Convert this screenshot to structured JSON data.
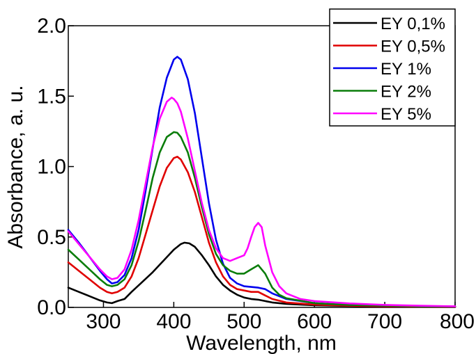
{
  "chart_data": {
    "type": "line",
    "title": "",
    "xlabel": "Wavelength, nm",
    "ylabel": "Absorbance, a. u.",
    "xlim": [
      250,
      800
    ],
    "ylim": [
      0.0,
      2.0
    ],
    "x_ticks": [
      300,
      400,
      500,
      600,
      700,
      800
    ],
    "y_ticks": [
      0.0,
      0.5,
      1.0,
      1.5,
      2.0
    ],
    "x_tick_labels": [
      "300",
      "400",
      "500",
      "600",
      "700",
      "800"
    ],
    "y_tick_labels": [
      "0.0",
      "0.5",
      "1.0",
      "1.5",
      "2.0"
    ],
    "grid": false,
    "legend_position": "top-right",
    "series": [
      {
        "name": "EY 0,1%",
        "color": "#000000",
        "points": [
          [
            250,
            0.14
          ],
          [
            265,
            0.11
          ],
          [
            280,
            0.08
          ],
          [
            295,
            0.05
          ],
          [
            305,
            0.035
          ],
          [
            312,
            0.03
          ],
          [
            320,
            0.045
          ],
          [
            330,
            0.06
          ],
          [
            340,
            0.11
          ],
          [
            355,
            0.18
          ],
          [
            370,
            0.25
          ],
          [
            385,
            0.33
          ],
          [
            400,
            0.41
          ],
          [
            410,
            0.45
          ],
          [
            415,
            0.46
          ],
          [
            422,
            0.455
          ],
          [
            430,
            0.43
          ],
          [
            440,
            0.37
          ],
          [
            450,
            0.3
          ],
          [
            460,
            0.22
          ],
          [
            470,
            0.16
          ],
          [
            480,
            0.12
          ],
          [
            490,
            0.09
          ],
          [
            500,
            0.07
          ],
          [
            510,
            0.06
          ],
          [
            520,
            0.055
          ],
          [
            530,
            0.045
          ],
          [
            540,
            0.035
          ],
          [
            560,
            0.025
          ],
          [
            600,
            0.015
          ],
          [
            650,
            0.01
          ],
          [
            700,
            0.006
          ],
          [
            750,
            0.004
          ],
          [
            800,
            0.003
          ]
        ]
      },
      {
        "name": "EY 0,5%",
        "color": "#e00000",
        "points": [
          [
            250,
            0.32
          ],
          [
            265,
            0.26
          ],
          [
            280,
            0.2
          ],
          [
            295,
            0.14
          ],
          [
            305,
            0.11
          ],
          [
            312,
            0.1
          ],
          [
            320,
            0.11
          ],
          [
            330,
            0.14
          ],
          [
            340,
            0.22
          ],
          [
            350,
            0.35
          ],
          [
            360,
            0.52
          ],
          [
            370,
            0.69
          ],
          [
            380,
            0.86
          ],
          [
            390,
            0.99
          ],
          [
            400,
            1.06
          ],
          [
            405,
            1.07
          ],
          [
            410,
            1.05
          ],
          [
            420,
            0.96
          ],
          [
            430,
            0.82
          ],
          [
            440,
            0.64
          ],
          [
            450,
            0.46
          ],
          [
            460,
            0.32
          ],
          [
            470,
            0.22
          ],
          [
            480,
            0.16
          ],
          [
            490,
            0.13
          ],
          [
            500,
            0.12
          ],
          [
            510,
            0.11
          ],
          [
            520,
            0.11
          ],
          [
            530,
            0.085
          ],
          [
            540,
            0.06
          ],
          [
            560,
            0.035
          ],
          [
            600,
            0.02
          ],
          [
            650,
            0.012
          ],
          [
            700,
            0.008
          ],
          [
            750,
            0.005
          ],
          [
            800,
            0.004
          ]
        ]
      },
      {
        "name": "EY 1%",
        "color": "#0000ee",
        "points": [
          [
            250,
            0.55
          ],
          [
            265,
            0.46
          ],
          [
            280,
            0.36
          ],
          [
            295,
            0.26
          ],
          [
            305,
            0.2
          ],
          [
            312,
            0.17
          ],
          [
            320,
            0.18
          ],
          [
            330,
            0.23
          ],
          [
            340,
            0.35
          ],
          [
            350,
            0.55
          ],
          [
            360,
            0.83
          ],
          [
            370,
            1.13
          ],
          [
            380,
            1.42
          ],
          [
            390,
            1.63
          ],
          [
            400,
            1.76
          ],
          [
            405,
            1.78
          ],
          [
            410,
            1.76
          ],
          [
            420,
            1.62
          ],
          [
            430,
            1.38
          ],
          [
            440,
            1.06
          ],
          [
            450,
            0.74
          ],
          [
            460,
            0.48
          ],
          [
            470,
            0.31
          ],
          [
            480,
            0.21
          ],
          [
            490,
            0.17
          ],
          [
            500,
            0.15
          ],
          [
            510,
            0.145
          ],
          [
            520,
            0.14
          ],
          [
            530,
            0.13
          ],
          [
            540,
            0.1
          ],
          [
            560,
            0.06
          ],
          [
            600,
            0.03
          ],
          [
            650,
            0.018
          ],
          [
            700,
            0.012
          ],
          [
            750,
            0.008
          ],
          [
            800,
            0.006
          ]
        ]
      },
      {
        "name": "EY 2%",
        "color": "#0a7d0a",
        "points": [
          [
            250,
            0.41
          ],
          [
            265,
            0.34
          ],
          [
            280,
            0.27
          ],
          [
            295,
            0.2
          ],
          [
            305,
            0.16
          ],
          [
            312,
            0.15
          ],
          [
            320,
            0.16
          ],
          [
            330,
            0.2
          ],
          [
            340,
            0.3
          ],
          [
            350,
            0.47
          ],
          [
            360,
            0.69
          ],
          [
            370,
            0.92
          ],
          [
            380,
            1.1
          ],
          [
            390,
            1.21
          ],
          [
            400,
            1.245
          ],
          [
            405,
            1.24
          ],
          [
            410,
            1.21
          ],
          [
            420,
            1.1
          ],
          [
            430,
            0.92
          ],
          [
            440,
            0.71
          ],
          [
            450,
            0.52
          ],
          [
            460,
            0.38
          ],
          [
            470,
            0.3
          ],
          [
            480,
            0.26
          ],
          [
            490,
            0.24
          ],
          [
            500,
            0.24
          ],
          [
            510,
            0.27
          ],
          [
            520,
            0.3
          ],
          [
            530,
            0.24
          ],
          [
            540,
            0.14
          ],
          [
            550,
            0.09
          ],
          [
            560,
            0.065
          ],
          [
            600,
            0.03
          ],
          [
            650,
            0.018
          ],
          [
            700,
            0.012
          ],
          [
            750,
            0.008
          ],
          [
            800,
            0.006
          ]
        ]
      },
      {
        "name": "EY 5%",
        "color": "#ff00ff",
        "points": [
          [
            250,
            0.54
          ],
          [
            265,
            0.45
          ],
          [
            280,
            0.36
          ],
          [
            295,
            0.27
          ],
          [
            305,
            0.22
          ],
          [
            312,
            0.2
          ],
          [
            320,
            0.21
          ],
          [
            330,
            0.27
          ],
          [
            340,
            0.41
          ],
          [
            350,
            0.62
          ],
          [
            360,
            0.88
          ],
          [
            370,
            1.14
          ],
          [
            380,
            1.34
          ],
          [
            390,
            1.46
          ],
          [
            397,
            1.49
          ],
          [
            400,
            1.48
          ],
          [
            405,
            1.45
          ],
          [
            410,
            1.39
          ],
          [
            420,
            1.2
          ],
          [
            430,
            0.97
          ],
          [
            440,
            0.74
          ],
          [
            450,
            0.55
          ],
          [
            460,
            0.42
          ],
          [
            470,
            0.35
          ],
          [
            480,
            0.33
          ],
          [
            490,
            0.35
          ],
          [
            500,
            0.37
          ],
          [
            505,
            0.42
          ],
          [
            510,
            0.5
          ],
          [
            515,
            0.57
          ],
          [
            520,
            0.6
          ],
          [
            525,
            0.57
          ],
          [
            530,
            0.44
          ],
          [
            540,
            0.25
          ],
          [
            550,
            0.15
          ],
          [
            560,
            0.1
          ],
          [
            580,
            0.06
          ],
          [
            600,
            0.045
          ],
          [
            650,
            0.028
          ],
          [
            700,
            0.018
          ],
          [
            750,
            0.012
          ],
          [
            800,
            0.008
          ]
        ]
      }
    ]
  }
}
